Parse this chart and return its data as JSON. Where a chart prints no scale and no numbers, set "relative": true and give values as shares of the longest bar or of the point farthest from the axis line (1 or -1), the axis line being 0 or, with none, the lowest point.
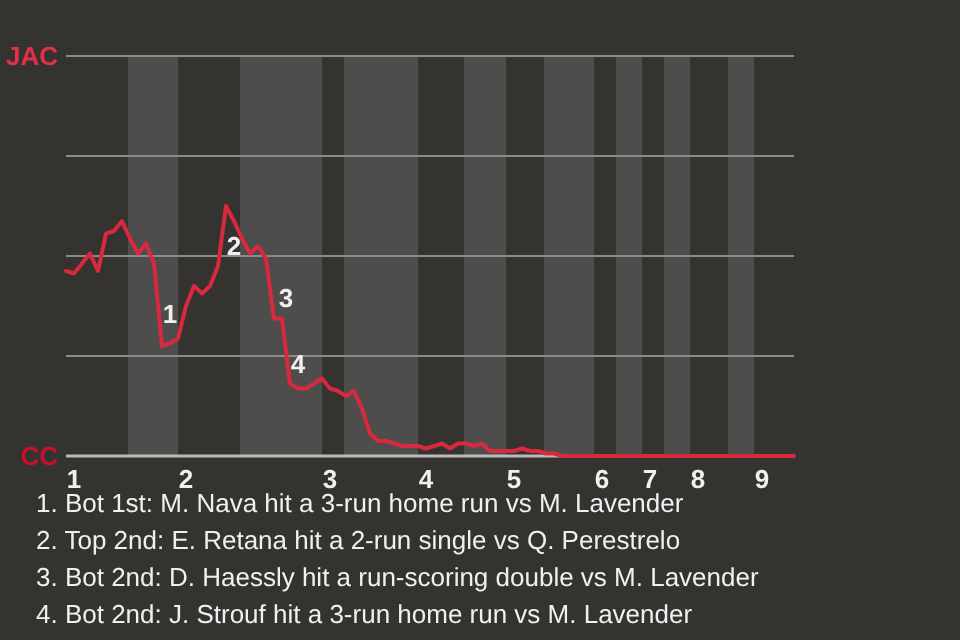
{
  "chart_data": {
    "type": "line",
    "relative": true,
    "categories": [
      null,
      "1",
      null,
      null,
      null,
      null,
      null,
      null,
      null,
      null,
      null,
      null,
      null,
      null,
      null,
      "2",
      null,
      null,
      null,
      null,
      null,
      null,
      null,
      null,
      null,
      null,
      null,
      null,
      null,
      null,
      null,
      null,
      null,
      "3",
      null,
      null,
      null,
      null,
      null,
      null,
      null,
      null,
      null,
      null,
      null,
      "4",
      null,
      null,
      null,
      null,
      null,
      null,
      null,
      null,
      null,
      null,
      "5",
      null,
      null,
      null,
      null,
      null,
      null,
      null,
      null,
      null,
      null,
      "6",
      null,
      null,
      null,
      null,
      null,
      "7",
      null,
      null,
      null,
      null,
      null,
      "8",
      null,
      null,
      null,
      null,
      null,
      null,
      null,
      "9",
      null,
      null,
      null,
      null
    ],
    "series": [
      {
        "color": "#d8293f",
        "values": [
          0.74,
          0.73,
          0.77,
          0.81,
          0.74,
          0.89,
          0.9,
          0.94,
          0.87,
          0.81,
          0.85,
          0.77,
          0.44,
          0.45,
          0.47,
          0.6,
          0.68,
          0.65,
          0.68,
          0.76,
          1,
          0.94,
          0.87,
          0.81,
          0.84,
          0.79,
          0.55,
          0.55,
          0.29,
          0.27,
          0.27,
          0.29,
          0.31,
          0.27,
          0.26,
          0.24,
          0.26,
          0.19,
          0.09,
          0.06,
          0.06,
          0.05,
          0.04,
          0.04,
          0.04,
          0.03,
          0.04,
          0.05,
          0.03,
          0.05,
          0.05,
          0.04,
          0.05,
          0.02,
          0.02,
          0.02,
          0.02,
          0.03,
          0.02,
          0.02,
          0.01,
          0.01,
          0,
          0,
          0,
          0,
          0,
          0,
          0,
          0,
          0,
          0,
          0,
          0,
          0,
          0,
          0,
          0,
          0,
          0,
          0,
          0,
          0,
          0,
          0,
          0,
          0,
          0,
          0,
          0,
          0,
          0
        ],
        "line_style": "solid"
      }
    ],
    "ref_lines": [
      {
        "axis": "y",
        "value": 0.4,
        "color": "#8c8b89"
      },
      {
        "axis": "y",
        "value": 0.8,
        "color": "#8c8b89"
      },
      {
        "axis": "y",
        "value": 1.2,
        "color": "#8c8b89"
      },
      {
        "axis": "y",
        "value": 1.6,
        "color": "#8c8b89"
      }
    ],
    "annotations": [
      "JAC",
      "CC",
      "1",
      "2",
      "3",
      "4",
      "1. Bot 1st: M. Nava hit a 3-run home run vs M. Lavender",
      "2. Top 2nd: E. Retana hit a 2-run single vs Q. Perestrelo",
      "3. Bot 2nd: D. Haessly hit a run-scoring double vs M. Lavender",
      "4. Bot 2nd: J. Strouf hit a 3-run home run vs M. Lavender"
    ]
  }
}
